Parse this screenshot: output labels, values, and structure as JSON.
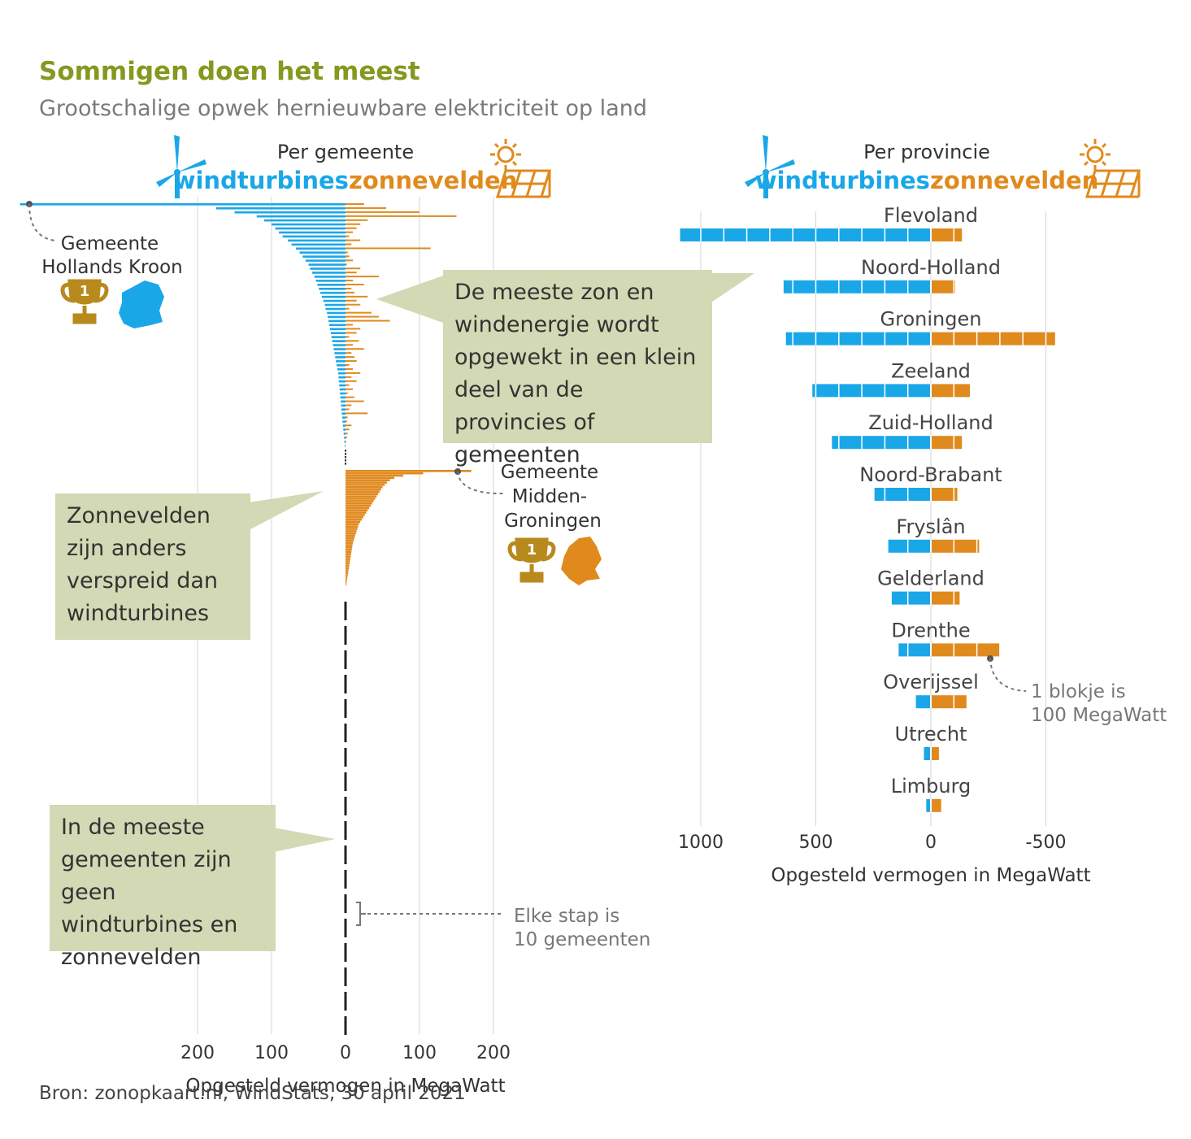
{
  "title": "Sommigen doen het meest",
  "subtitle": "Grootschalige opwek hernieuwbare elektriciteit op land",
  "source": "Bron: zonopkaart.nl, WindStats, 30 april 2021",
  "colors": {
    "wind": "#1aa7e8",
    "solar": "#e08a1e",
    "title": "#85981f",
    "callout": "#d3d9b4",
    "trophy": "#b8891c"
  },
  "legend": {
    "wind": "windturbines",
    "solar": "zonnevelden"
  },
  "left_panel": {
    "heading": "Per gemeente",
    "annotation_top": "Gemeente Hollands Kroon",
    "annotation_solar": "Gemeente Midden-Groningen",
    "step_note": "Elke stap is 10 gemeenten",
    "callouts": [
      "De meeste zon en windenergie wordt opgewekt in een klein deel van de provincies of gemeenten",
      "Zonnevelden zijn anders verspreid dan windturbines",
      "In de meeste gemeenten zijn geen windturbines en zonnevelden"
    ]
  },
  "right_panel": {
    "heading": "Per provincie",
    "block_note": "1 blokje is 100 MegaWatt"
  },
  "chart_data": [
    {
      "type": "bar",
      "title": "Per gemeente",
      "xlabel": "Opgesteld vermogen in MegaWatt",
      "x_ticks": [
        "200",
        "100",
        "0",
        "100",
        "200"
      ],
      "xlim": [
        -200,
        200
      ],
      "orientation": "horizontal-diverging",
      "series": [
        {
          "name": "windturbines",
          "values": [
            440,
            175,
            150,
            120,
            110,
            100,
            95,
            90,
            85,
            78,
            73,
            67,
            62,
            58,
            54,
            50,
            48,
            45,
            42,
            40,
            38,
            36,
            34,
            32,
            30,
            28,
            27,
            25,
            24,
            23,
            22,
            21,
            20,
            19,
            18,
            17,
            16,
            15,
            14,
            13,
            12,
            11,
            10,
            9.5,
            9,
            8.5,
            8,
            7.5,
            7,
            6.5,
            6,
            5.5,
            5,
            4.5,
            4,
            3.5,
            3,
            2.5,
            2,
            1.5,
            1
          ]
        },
        {
          "name": "zonnevelden",
          "values": [
            25,
            55,
            100,
            150,
            30,
            20,
            15,
            10,
            5,
            20,
            8,
            115,
            3,
            5,
            10,
            2,
            20,
            15,
            45,
            10,
            25,
            8,
            12,
            30,
            15,
            20,
            5,
            35,
            45,
            60,
            10,
            20,
            15,
            5,
            18,
            10,
            25,
            8,
            12,
            15,
            5,
            10,
            20,
            8,
            15,
            5,
            10,
            3,
            12,
            25,
            8,
            5,
            30,
            3,
            2,
            8,
            5,
            3,
            2,
            1,
            0
          ]
        },
        {
          "name": "zonnevelden (alleen zon)",
          "values": [
            170,
            105,
            78,
            66,
            60,
            56,
            53,
            50,
            48,
            46,
            44,
            42,
            40,
            38,
            36,
            34,
            32,
            30,
            28,
            26,
            24,
            22,
            20,
            18,
            17,
            16,
            15,
            14,
            13,
            12,
            11,
            10,
            9.5,
            9,
            8.5,
            8,
            7.5,
            7,
            6.5,
            6,
            5.5,
            5,
            4.5,
            4,
            3.5,
            3,
            2.5,
            2,
            1.5,
            1
          ]
        }
      ]
    },
    {
      "type": "bar",
      "title": "Per provincie",
      "xlabel": "Opgesteld vermogen in MegaWatt",
      "x_ticks": [
        "1000",
        "500",
        "0",
        "-500"
      ],
      "categories": [
        "Flevoland",
        "Noord-Holland",
        "Groningen",
        "Zeeland",
        "Zuid-Holland",
        "Noord-Brabant",
        "Fryslân",
        "Gelderland",
        "Drenthe",
        "Overijssel",
        "Utrecht",
        "Limburg"
      ],
      "series": [
        {
          "name": "windturbines",
          "values": [
            1090,
            640,
            630,
            515,
            430,
            245,
            185,
            170,
            140,
            65,
            30,
            20
          ]
        },
        {
          "name": "zonnevelden",
          "values": [
            135,
            105,
            540,
            170,
            135,
            115,
            210,
            125,
            300,
            155,
            35,
            45
          ]
        }
      ]
    }
  ]
}
